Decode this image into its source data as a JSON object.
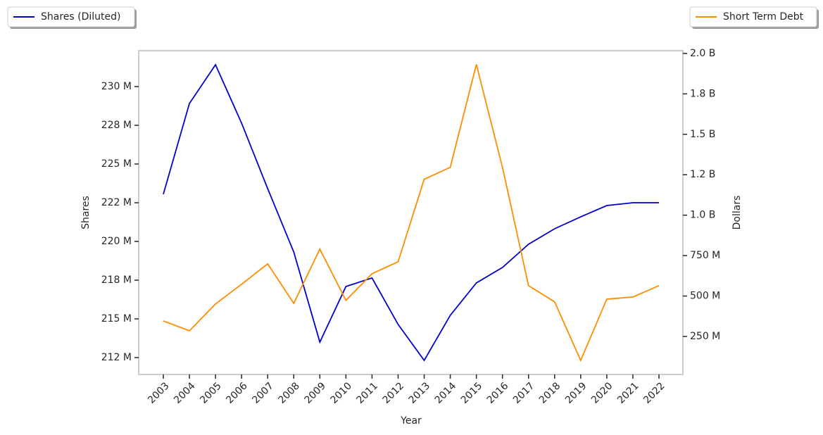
{
  "chart_data": {
    "type": "line",
    "categories": [
      "2003",
      "2004",
      "2005",
      "2006",
      "2007",
      "2008",
      "2009",
      "2010",
      "2011",
      "2012",
      "2013",
      "2014",
      "2015",
      "2016",
      "2017",
      "2018",
      "2019",
      "2020",
      "2021",
      "2022"
    ],
    "xlabel": "Year",
    "ylabel": "Shares",
    "y2label": "Dollars",
    "series": [
      {
        "name": "Shares (Diluted)",
        "color": "#0000cd",
        "axis": "y",
        "legend": "upper left",
        "values": [
          223050000,
          228910000,
          231410000,
          227640000,
          223410000,
          219320000,
          213500000,
          217090000,
          217640000,
          214640000,
          212320000,
          215230000,
          217320000,
          218320000,
          219820000,
          220820000,
          221590000,
          222320000,
          222500000,
          222500000
        ]
      },
      {
        "name": "Short Term Debt",
        "color": "#ff8c00",
        "axis": "y2",
        "legend": "upper right",
        "values": [
          346000000,
          285000000,
          451000000,
          573000000,
          699000000,
          455000000,
          790000000,
          473000000,
          638000000,
          712000000,
          1222000000,
          1296000000,
          1932000000,
          1296000000,
          564000000,
          464000000,
          102000000,
          481000000,
          494000000,
          564000000
        ]
      }
    ],
    "ylim": [
      211410000,
      232320000
    ],
    "yticks": [
      {
        "value": 212500000,
        "label": "212 M"
      },
      {
        "value": 215000000,
        "label": "215 M"
      },
      {
        "value": 217500000,
        "label": "218 M"
      },
      {
        "value": 220000000,
        "label": "220 M"
      },
      {
        "value": 222500000,
        "label": "222 M"
      },
      {
        "value": 225000000,
        "label": "225 M"
      },
      {
        "value": 227500000,
        "label": "228 M"
      },
      {
        "value": 230000000,
        "label": "230 M"
      }
    ],
    "y2lim": [
      15000000,
      2017000000
    ],
    "y2ticks": [
      {
        "value": 250000000,
        "label": "250 M"
      },
      {
        "value": 500000000,
        "label": "500 M"
      },
      {
        "value": 750000000,
        "label": "750 M"
      },
      {
        "value": 1000000000,
        "label": "1.0 B"
      },
      {
        "value": 1250000000,
        "label": "1.2 B"
      },
      {
        "value": 1500000000,
        "label": "1.5 B"
      },
      {
        "value": 1750000000,
        "label": "1.8 B"
      },
      {
        "value": 2000000000,
        "label": "2.0 B"
      }
    ],
    "grid": false
  }
}
